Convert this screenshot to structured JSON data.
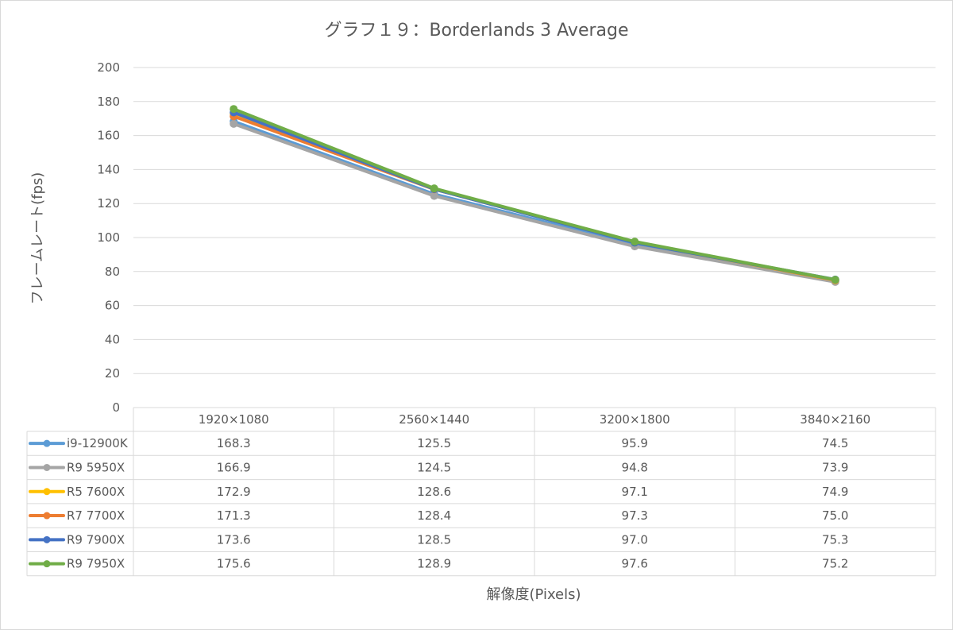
{
  "chart_data": {
    "type": "line",
    "title": "グラフ１９：Borderlands 3 Average",
    "ylabel": "フレームレート(fps)",
    "xlabel": "解像度(Pixels)",
    "ylim": [
      0,
      200
    ],
    "yticks": [
      0,
      20,
      40,
      60,
      80,
      100,
      120,
      140,
      160,
      180,
      200
    ],
    "grid": true,
    "legend": "data-table",
    "categories": [
      "1920×1080",
      "2560×1440",
      "3200×1800",
      "3840×2160"
    ],
    "series": [
      {
        "name": "i9-12900K",
        "color": "#5b9bd5",
        "values": [
          168.3,
          125.5,
          95.9,
          74.5
        ],
        "labels": [
          "168.3",
          "125.5",
          "95.9",
          "74.5"
        ]
      },
      {
        "name": "R9 5950X",
        "color": "#a5a5a5",
        "values": [
          166.9,
          124.5,
          94.8,
          73.9
        ],
        "labels": [
          "166.9",
          "124.5",
          "94.8",
          "73.9"
        ]
      },
      {
        "name": "R5 7600X",
        "color": "#ffc000",
        "values": [
          172.9,
          128.6,
          97.1,
          74.9
        ],
        "labels": [
          "172.9",
          "128.6",
          "97.1",
          "74.9"
        ]
      },
      {
        "name": "R7 7700X",
        "color": "#ed7d31",
        "values": [
          171.3,
          128.4,
          97.3,
          75.0
        ],
        "labels": [
          "171.3",
          "128.4",
          "97.3",
          "75.0"
        ]
      },
      {
        "name": "R9 7900X",
        "color": "#4472c4",
        "values": [
          173.6,
          128.5,
          97.0,
          75.3
        ],
        "labels": [
          "173.6",
          "128.5",
          "97.0",
          "75.3"
        ]
      },
      {
        "name": "R9 7950X",
        "color": "#70ad47",
        "values": [
          175.6,
          128.9,
          97.6,
          75.2
        ],
        "labels": [
          "175.6",
          "128.9",
          "97.6",
          "75.2"
        ]
      }
    ]
  }
}
